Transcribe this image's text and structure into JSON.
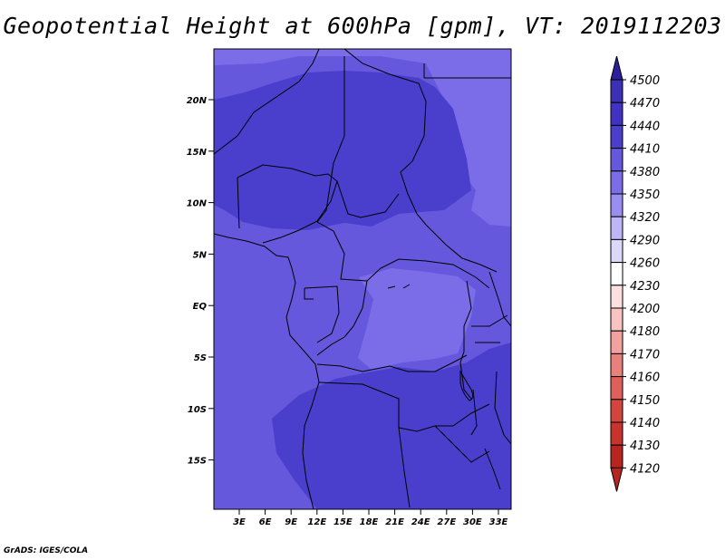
{
  "title": "Geopotential Height at 600hPa [gpm], VT: 2019112203",
  "credit": "GrADS: IGES/COLA",
  "map": {
    "lat_labels": [
      "20N",
      "15N",
      "10N",
      "5N",
      "EQ",
      "5S",
      "10S",
      "15S"
    ],
    "lon_labels": [
      "3E",
      "6E",
      "9E",
      "12E",
      "15E",
      "18E",
      "21E",
      "24E",
      "27E",
      "30E",
      "33E"
    ],
    "lon_range": [
      0,
      35
    ],
    "lat_range": [
      -20,
      24.5
    ]
  },
  "colorbar": {
    "levels": [
      "4500",
      "4470",
      "4440",
      "4410",
      "4380",
      "4350",
      "4320",
      "4290",
      "4260",
      "4230",
      "4200",
      "4180",
      "4170",
      "4160",
      "4150",
      "4140",
      "4130",
      "4120"
    ],
    "colors": [
      "#2d1f9b",
      "#3a31b6",
      "#4232c3",
      "#4a3fcd",
      "#6658dc",
      "#7b6ce8",
      "#9a8df0",
      "#bdb5f6",
      "#dcd8fa",
      "#ffffff",
      "#fce0de",
      "#f8c3c0",
      "#f1a29e",
      "#e8807c",
      "#df5f5a",
      "#d54540",
      "#c8332e",
      "#b82520"
    ]
  },
  "field_colors": {
    "c4410": "#4a3fcd",
    "c4380": "#6658dc",
    "c4350": "#7b6ce8"
  }
}
